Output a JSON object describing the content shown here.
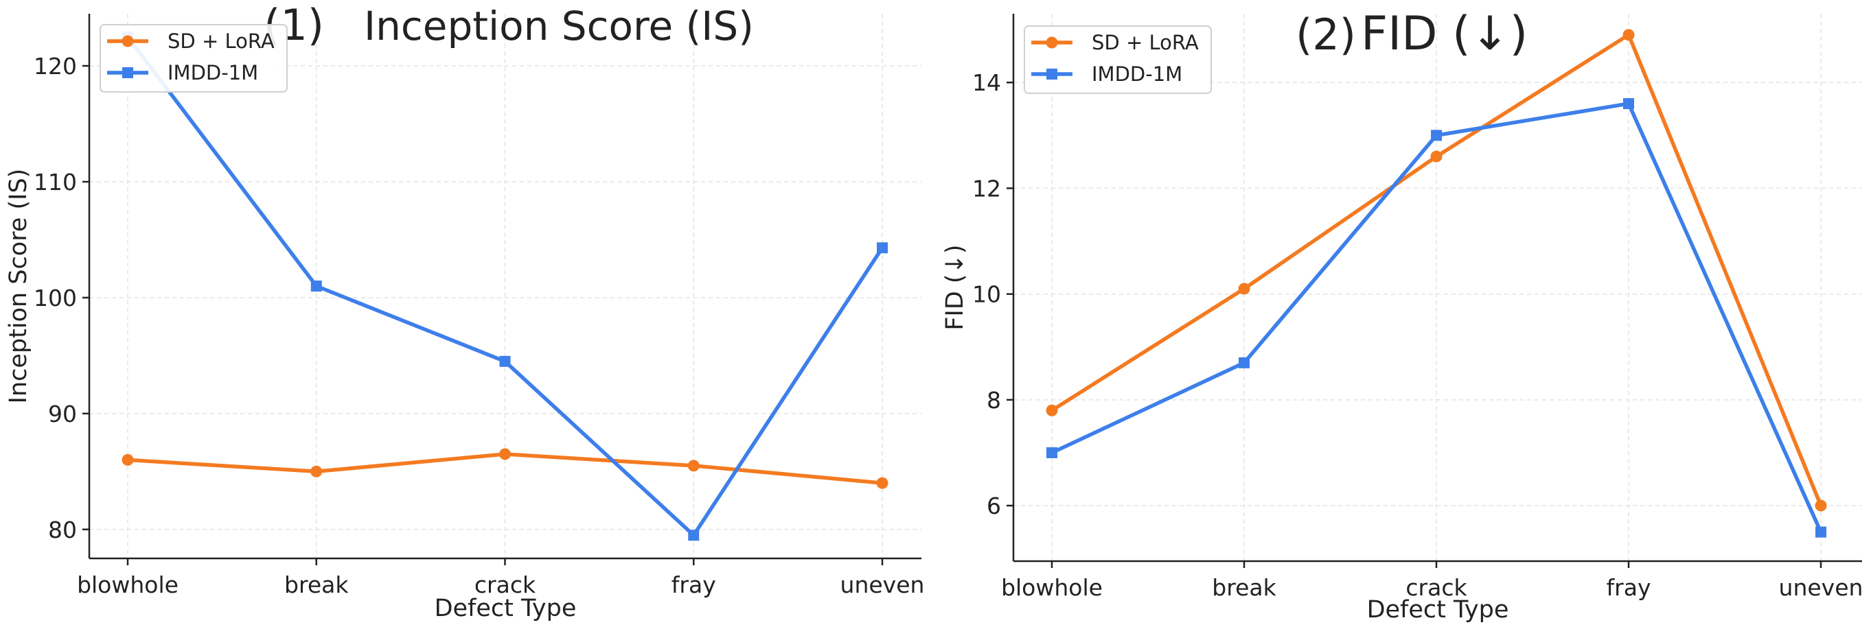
{
  "chart_data": [
    {
      "type": "line",
      "panel_label": "(1)",
      "title": "Inception Score (IS)",
      "xlabel": "Defect Type",
      "ylabel": "Inception Score (IS)",
      "categories": [
        "blowhole",
        "break",
        "crack",
        "fray",
        "uneven"
      ],
      "ylim": [
        77.5,
        124.5
      ],
      "yticks": [
        80,
        90,
        100,
        110,
        120
      ],
      "grid": true,
      "legend_position": "top-left",
      "series": [
        {
          "name": "SD + LoRA",
          "values": [
            86.0,
            85.0,
            86.5,
            85.5,
            84.0
          ],
          "color": "#F47A20",
          "marker": "circle"
        },
        {
          "name": "IMDD-1M",
          "values": [
            122.5,
            101.0,
            94.5,
            79.5,
            104.3
          ],
          "color": "#3D7FEA",
          "marker": "square"
        }
      ]
    },
    {
      "type": "line",
      "panel_label": "(2)",
      "title": "FID (↓)",
      "xlabel": "Defect Type",
      "ylabel": "FID (↓)",
      "categories": [
        "blowhole",
        "break",
        "crack",
        "fray",
        "uneven"
      ],
      "ylim": [
        4.95,
        15.3
      ],
      "yticks": [
        6,
        8,
        10,
        12,
        14
      ],
      "grid": true,
      "legend_position": "top-left",
      "series": [
        {
          "name": "SD + LoRA",
          "values": [
            7.8,
            10.1,
            12.6,
            14.9,
            6.0
          ],
          "color": "#F47A20",
          "marker": "circle"
        },
        {
          "name": "IMDD-1M",
          "values": [
            7.0,
            8.7,
            13.0,
            13.6,
            5.5
          ],
          "color": "#3D7FEA",
          "marker": "square"
        }
      ]
    }
  ]
}
